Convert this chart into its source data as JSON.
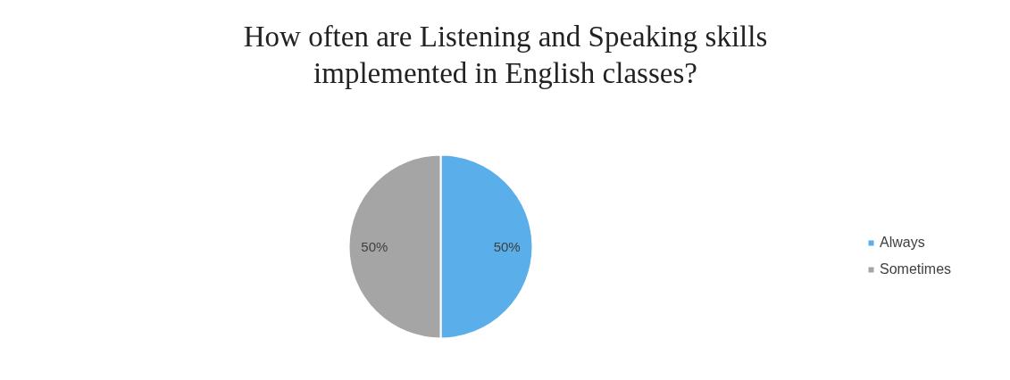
{
  "chart_data": {
    "type": "pie",
    "title": "How often are Listening and Speaking skills implemented in English classes?",
    "categories": [
      "Always",
      "Sometimes"
    ],
    "values": [
      50,
      50
    ],
    "colors": [
      "#5aaeea",
      "#a5a5a5"
    ],
    "value_labels": [
      "50%",
      "50%"
    ],
    "legend": "right"
  }
}
